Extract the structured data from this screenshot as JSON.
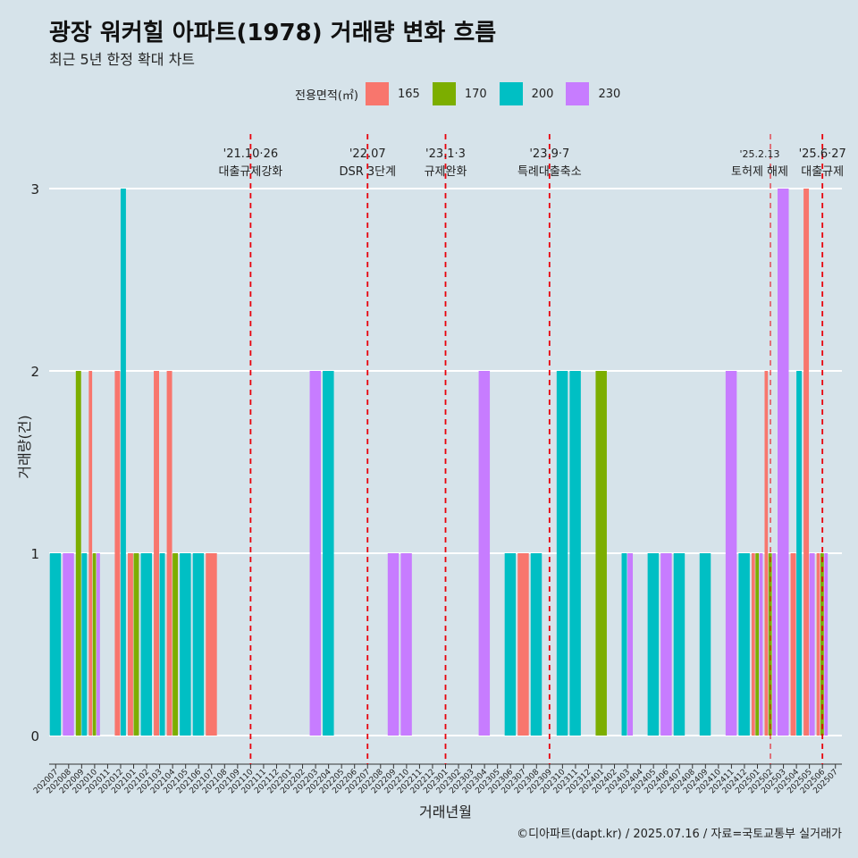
{
  "title": "광장 워커힐 아파트(1978) 거래량 변화 흐름",
  "subtitle": "최근 5년 한정 확대 차트",
  "caption": "©디아파트(dapt.kr) / 2025.07.16 / 자료=국토교통부 실거래가",
  "legend": {
    "title": "전용면적(㎡)",
    "items": [
      {
        "label": "165",
        "color": "#F8766D"
      },
      {
        "label": "170",
        "color": "#7CAE00"
      },
      {
        "label": "200",
        "color": "#00BFC4"
      },
      {
        "label": "230",
        "color": "#C77CFF"
      }
    ]
  },
  "chart_data": {
    "type": "bar",
    "title": "광장 워커힐 아파트(1978) 거래량 변화 흐름",
    "xlabel": "거래년월",
    "ylabel": "거래량(건)",
    "ylim": [
      0,
      3
    ],
    "yticks": [
      0,
      1,
      2,
      3
    ],
    "categories": [
      "202007",
      "202008",
      "202009",
      "202010",
      "202011",
      "202012",
      "202101",
      "202102",
      "202103",
      "202104",
      "202105",
      "202106",
      "202107",
      "202108",
      "202109",
      "202110",
      "202111",
      "202112",
      "202201",
      "202202",
      "202203",
      "202204",
      "202205",
      "202206",
      "202207",
      "202208",
      "202209",
      "202210",
      "202211",
      "202212",
      "202301",
      "202302",
      "202303",
      "202304",
      "202305",
      "202306",
      "202307",
      "202308",
      "202309",
      "202310",
      "202311",
      "202312",
      "202401",
      "202402",
      "202403",
      "202404",
      "202405",
      "202406",
      "202407",
      "202408",
      "202409",
      "202410",
      "202411",
      "202412",
      "202501",
      "202502",
      "202503",
      "202504",
      "202505",
      "202506",
      "202507"
    ],
    "series": [
      {
        "name": "165",
        "color": "#F8766D",
        "values": {
          "202010": 2,
          "202012": 2,
          "202101": 1,
          "202103": 2,
          "202104": 2,
          "202107": 1,
          "202307": 1,
          "202501": 1,
          "202502": 2,
          "202504": 1,
          "202505": 3,
          "202506": 1
        }
      },
      {
        "name": "170",
        "color": "#7CAE00",
        "values": {
          "202009": 2,
          "202010": 1,
          "202101": 1,
          "202104": 1,
          "202401": 2,
          "202501": 1,
          "202502": 1,
          "202506": 1
        }
      },
      {
        "name": "200",
        "color": "#00BFC4",
        "values": {
          "202007": 1,
          "202009": 1,
          "202012": 3,
          "202102": 1,
          "202103": 1,
          "202105": 1,
          "202106": 1,
          "202204": 2,
          "202306": 1,
          "202308": 1,
          "202310": 2,
          "202311": 2,
          "202403": 1,
          "202405": 1,
          "202407": 1,
          "202409": 1,
          "202412": 1,
          "202504": 2
        }
      },
      {
        "name": "230",
        "color": "#C77CFF",
        "values": {
          "202008": 1,
          "202010": 1,
          "202203": 2,
          "202209": 1,
          "202210": 1,
          "202304": 2,
          "202403": 1,
          "202406": 1,
          "202411": 2,
          "202501": 1,
          "202502": 1,
          "202503": 3,
          "202505": 1,
          "202506": 1
        }
      }
    ],
    "events": [
      {
        "category": "202110",
        "date": "'21.10·26",
        "label": "대출규제강화",
        "bold": true
      },
      {
        "category": "202207",
        "date": "'22.07",
        "label": "DSR 3단계",
        "bold": true
      },
      {
        "category": "202301",
        "date": "'23.1·3",
        "label": "규제완화",
        "bold": true
      },
      {
        "category": "202309",
        "date": "'23.9·7",
        "label": "특례대출축소",
        "bold": true
      },
      {
        "category": "202502",
        "date": "'25.2.13",
        "label": "토허제 해제",
        "bold": false
      },
      {
        "category": "202506",
        "date": "'25.6·27",
        "label": "대출규제",
        "bold": true
      }
    ]
  }
}
